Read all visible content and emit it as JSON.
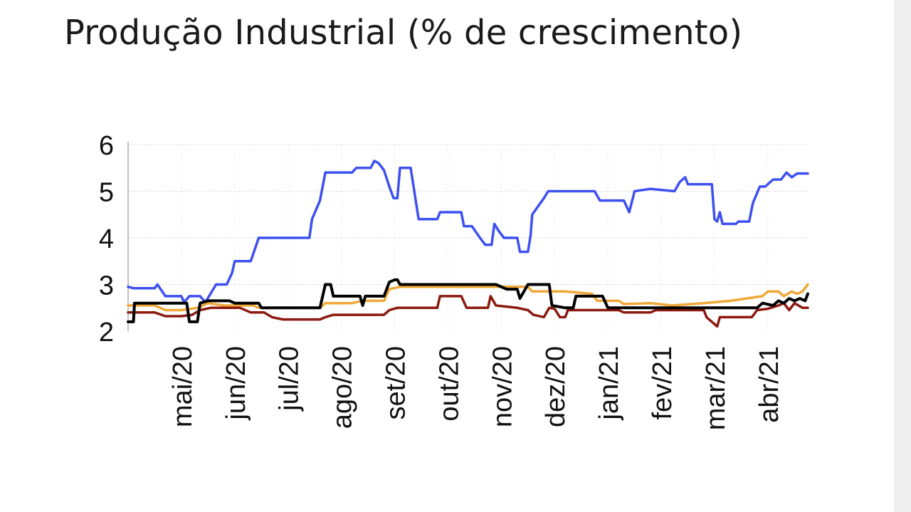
{
  "chart_data": {
    "type": "line",
    "title": "Produção Industrial (% de crescimento)",
    "xlabel": "",
    "ylabel": "",
    "ylim": [
      2,
      6
    ],
    "y_ticks": [
      2,
      3,
      4,
      5,
      6
    ],
    "x_tick_labels": [
      "mai/20",
      "jun/20",
      "jul/20",
      "ago/20",
      "set/20",
      "out/20",
      "nov/20",
      "dez/20",
      "jan/21",
      "fev/21",
      "mar/21",
      "abr/21"
    ],
    "grid": true,
    "legend": "none",
    "x_units": "months since start of visible range (tick 'mai/20' = 1)",
    "series": [
      {
        "color": "#3d50f0",
        "points": [
          [
            0,
            2.95
          ],
          [
            0.1,
            2.92
          ],
          [
            0.5,
            2.92
          ],
          [
            0.55,
            3.0
          ],
          [
            0.7,
            2.75
          ],
          [
            1.0,
            2.75
          ],
          [
            1.05,
            2.62
          ],
          [
            1.15,
            2.75
          ],
          [
            1.35,
            2.75
          ],
          [
            1.45,
            2.62
          ],
          [
            1.65,
            3.0
          ],
          [
            1.85,
            3.0
          ],
          [
            1.95,
            3.25
          ],
          [
            2.0,
            3.5
          ],
          [
            2.3,
            3.5
          ],
          [
            2.45,
            4.0
          ],
          [
            3.4,
            4.0
          ],
          [
            3.45,
            4.4
          ],
          [
            3.6,
            4.8
          ],
          [
            3.7,
            5.4
          ],
          [
            4.2,
            5.4
          ],
          [
            4.28,
            5.5
          ],
          [
            4.55,
            5.5
          ],
          [
            4.62,
            5.65
          ],
          [
            4.7,
            5.6
          ],
          [
            4.8,
            5.45
          ],
          [
            4.9,
            5.1
          ],
          [
            4.98,
            4.85
          ],
          [
            5.05,
            4.85
          ],
          [
            5.1,
            5.5
          ],
          [
            5.3,
            5.5
          ],
          [
            5.45,
            4.4
          ],
          [
            5.8,
            4.4
          ],
          [
            5.85,
            4.55
          ],
          [
            6.25,
            4.55
          ],
          [
            6.3,
            4.25
          ],
          [
            6.45,
            4.25
          ],
          [
            6.6,
            4.0
          ],
          [
            6.7,
            3.85
          ],
          [
            6.82,
            3.85
          ],
          [
            6.87,
            4.3
          ],
          [
            6.95,
            4.15
          ],
          [
            7.05,
            4.0
          ],
          [
            7.3,
            4.0
          ],
          [
            7.35,
            3.7
          ],
          [
            7.5,
            3.7
          ],
          [
            7.55,
            4.05
          ],
          [
            7.58,
            4.5
          ],
          [
            7.8,
            4.85
          ],
          [
            7.88,
            5.0
          ],
          [
            8.75,
            5.0
          ],
          [
            8.85,
            4.8
          ],
          [
            9.3,
            4.8
          ],
          [
            9.4,
            4.55
          ],
          [
            9.5,
            5.0
          ],
          [
            9.8,
            5.05
          ],
          [
            10.25,
            5.0
          ],
          [
            10.35,
            5.2
          ],
          [
            10.45,
            5.3
          ],
          [
            10.5,
            5.15
          ],
          [
            10.95,
            5.15
          ],
          [
            11.0,
            4.4
          ],
          [
            11.05,
            4.35
          ],
          [
            11.1,
            4.55
          ],
          [
            11.15,
            4.3
          ],
          [
            11.4,
            4.3
          ],
          [
            11.45,
            4.35
          ],
          [
            11.65,
            4.35
          ],
          [
            11.72,
            4.75
          ],
          [
            11.85,
            5.1
          ],
          [
            11.95,
            5.1
          ],
          [
            12.1,
            5.25
          ],
          [
            12.25,
            5.25
          ],
          [
            12.35,
            5.4
          ],
          [
            12.45,
            5.3
          ],
          [
            12.55,
            5.38
          ],
          [
            12.75,
            5.38
          ]
        ]
      },
      {
        "color": "#f0a838",
        "points": [
          [
            0,
            2.55
          ],
          [
            0.1,
            2.55
          ],
          [
            0.5,
            2.55
          ],
          [
            0.7,
            2.45
          ],
          [
            1.0,
            2.45
          ],
          [
            1.3,
            2.5
          ],
          [
            1.5,
            2.6
          ],
          [
            1.8,
            2.55
          ],
          [
            2.1,
            2.55
          ],
          [
            2.35,
            2.55
          ],
          [
            2.45,
            2.5
          ],
          [
            3.6,
            2.5
          ],
          [
            3.7,
            2.6
          ],
          [
            4.2,
            2.6
          ],
          [
            4.4,
            2.65
          ],
          [
            4.8,
            2.65
          ],
          [
            4.9,
            2.9
          ],
          [
            5.1,
            2.95
          ],
          [
            7.1,
            2.95
          ],
          [
            7.5,
            2.95
          ],
          [
            7.58,
            2.85
          ],
          [
            8.0,
            2.85
          ],
          [
            8.2,
            2.85
          ],
          [
            8.7,
            2.8
          ],
          [
            8.8,
            2.65
          ],
          [
            9.2,
            2.65
          ],
          [
            9.3,
            2.58
          ],
          [
            9.8,
            2.6
          ],
          [
            10.2,
            2.55
          ],
          [
            10.8,
            2.6
          ],
          [
            11.3,
            2.65
          ],
          [
            11.9,
            2.75
          ],
          [
            12.0,
            2.85
          ],
          [
            12.2,
            2.85
          ],
          [
            12.3,
            2.75
          ],
          [
            12.45,
            2.85
          ],
          [
            12.55,
            2.8
          ],
          [
            12.65,
            2.85
          ],
          [
            12.75,
            3.0
          ]
        ]
      },
      {
        "color": "#8c1a10",
        "points": [
          [
            0,
            2.4
          ],
          [
            0.5,
            2.4
          ],
          [
            0.7,
            2.32
          ],
          [
            1.0,
            2.32
          ],
          [
            1.2,
            2.35
          ],
          [
            1.35,
            2.45
          ],
          [
            1.55,
            2.5
          ],
          [
            2.1,
            2.5
          ],
          [
            2.3,
            2.4
          ],
          [
            2.55,
            2.4
          ],
          [
            2.7,
            2.3
          ],
          [
            2.9,
            2.25
          ],
          [
            3.6,
            2.25
          ],
          [
            3.7,
            2.3
          ],
          [
            3.85,
            2.35
          ],
          [
            4.8,
            2.35
          ],
          [
            4.9,
            2.45
          ],
          [
            5.05,
            2.5
          ],
          [
            5.8,
            2.5
          ],
          [
            5.85,
            2.75
          ],
          [
            6.25,
            2.75
          ],
          [
            6.35,
            2.5
          ],
          [
            6.75,
            2.5
          ],
          [
            6.8,
            2.75
          ],
          [
            6.9,
            2.55
          ],
          [
            7.3,
            2.5
          ],
          [
            7.5,
            2.45
          ],
          [
            7.6,
            2.35
          ],
          [
            7.8,
            2.3
          ],
          [
            7.9,
            2.5
          ],
          [
            8.0,
            2.48
          ],
          [
            8.1,
            2.3
          ],
          [
            8.2,
            2.3
          ],
          [
            8.25,
            2.45
          ],
          [
            8.8,
            2.45
          ],
          [
            9.2,
            2.45
          ],
          [
            9.3,
            2.4
          ],
          [
            9.8,
            2.4
          ],
          [
            9.9,
            2.45
          ],
          [
            10.8,
            2.45
          ],
          [
            10.85,
            2.3
          ],
          [
            10.95,
            2.2
          ],
          [
            11.05,
            2.1
          ],
          [
            11.1,
            2.3
          ],
          [
            11.7,
            2.3
          ],
          [
            11.8,
            2.45
          ],
          [
            12.0,
            2.48
          ],
          [
            12.2,
            2.55
          ],
          [
            12.3,
            2.6
          ],
          [
            12.4,
            2.45
          ],
          [
            12.5,
            2.6
          ],
          [
            12.65,
            2.5
          ],
          [
            12.75,
            2.5
          ]
        ]
      },
      {
        "color": "#000000",
        "points": [
          [
            0,
            2.2
          ],
          [
            0.1,
            2.2
          ],
          [
            0.12,
            2.6
          ],
          [
            0.5,
            2.6
          ],
          [
            1.0,
            2.6
          ],
          [
            1.1,
            2.6
          ],
          [
            1.15,
            2.2
          ],
          [
            1.3,
            2.2
          ],
          [
            1.35,
            2.6
          ],
          [
            1.5,
            2.65
          ],
          [
            1.9,
            2.65
          ],
          [
            2.0,
            2.6
          ],
          [
            2.45,
            2.6
          ],
          [
            2.5,
            2.5
          ],
          [
            3.6,
            2.5
          ],
          [
            3.7,
            3.0
          ],
          [
            3.8,
            3.0
          ],
          [
            3.85,
            2.75
          ],
          [
            4.35,
            2.75
          ],
          [
            4.4,
            2.55
          ],
          [
            4.45,
            2.75
          ],
          [
            4.8,
            2.75
          ],
          [
            4.9,
            3.05
          ],
          [
            5.0,
            3.1
          ],
          [
            5.05,
            3.1
          ],
          [
            5.1,
            3.0
          ],
          [
            6.9,
            3.0
          ],
          [
            7.1,
            2.9
          ],
          [
            7.3,
            2.9
          ],
          [
            7.35,
            2.7
          ],
          [
            7.5,
            3.0
          ],
          [
            7.9,
            3.0
          ],
          [
            7.95,
            2.55
          ],
          [
            8.2,
            2.5
          ],
          [
            8.35,
            2.5
          ],
          [
            8.4,
            2.75
          ],
          [
            8.9,
            2.75
          ],
          [
            9.0,
            2.5
          ],
          [
            9.3,
            2.5
          ],
          [
            10.8,
            2.5
          ],
          [
            11.3,
            2.5
          ],
          [
            11.8,
            2.5
          ],
          [
            11.9,
            2.6
          ],
          [
            12.1,
            2.55
          ],
          [
            12.2,
            2.65
          ],
          [
            12.3,
            2.6
          ],
          [
            12.4,
            2.7
          ],
          [
            12.5,
            2.65
          ],
          [
            12.6,
            2.7
          ],
          [
            12.7,
            2.65
          ],
          [
            12.75,
            2.8
          ]
        ]
      }
    ]
  }
}
